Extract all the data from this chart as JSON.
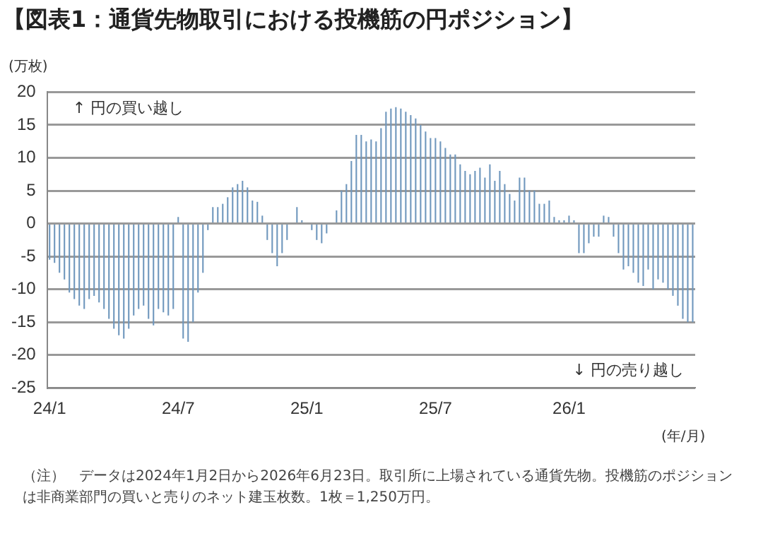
{
  "chart_data": {
    "type": "bar",
    "title": "【図表1：通貨先物取引における投機筋の円ポジション】",
    "ylabel": "(万枚)",
    "xlabel": "(年/月)",
    "categories": [
      "24/1",
      null,
      null,
      null,
      null,
      null,
      null,
      null,
      null,
      null,
      null,
      null,
      null,
      null,
      null,
      null,
      null,
      null,
      null,
      null,
      null,
      null,
      null,
      null,
      null,
      null,
      "24/7",
      null,
      null,
      null,
      null,
      null,
      null,
      null,
      null,
      null,
      null,
      null,
      null,
      null,
      null,
      null,
      null,
      null,
      null,
      null,
      null,
      null,
      null,
      null,
      null,
      null,
      "25/1",
      null,
      null,
      null,
      null,
      null,
      null,
      null,
      null,
      null,
      null,
      null,
      null,
      null,
      null,
      null,
      null,
      null,
      null,
      null,
      null,
      null,
      null,
      null,
      null,
      null,
      "25/7",
      null,
      null,
      null,
      null,
      null,
      null,
      null,
      null,
      null,
      null,
      null,
      null,
      null,
      null,
      null,
      null,
      null,
      null,
      null,
      null,
      null,
      null,
      null,
      null,
      null,
      null,
      "26/1",
      null,
      null,
      null,
      null,
      null,
      null,
      null,
      null,
      null,
      null,
      null,
      null,
      null,
      null,
      null,
      null,
      null,
      null,
      null,
      null,
      null,
      null,
      null,
      null,
      null
    ],
    "values": [
      -5.5,
      -6,
      -7.5,
      -8.5,
      -10.5,
      -11.5,
      -12.5,
      -13,
      -11.5,
      -11,
      -12,
      -13,
      -14.5,
      -16,
      -17,
      -17.5,
      -16,
      -14,
      -13,
      -12.5,
      -14.5,
      -15.5,
      -13,
      -13.5,
      -14,
      -13,
      1,
      -17.5,
      -18,
      -15,
      -10.5,
      -7.5,
      -1,
      2.5,
      2.5,
      3,
      4,
      5.5,
      6,
      6.5,
      5.5,
      3.5,
      3.3,
      1.2,
      -2.5,
      -4.5,
      -6.5,
      -4.5,
      -2.5,
      0,
      2.5,
      0.5,
      0,
      -1,
      -2.5,
      -3,
      -1.5,
      0,
      2,
      5,
      6,
      9.5,
      13.5,
      13.5,
      12.5,
      12.8,
      12.5,
      14.5,
      17,
      17.5,
      17.7,
      17.5,
      17,
      16.5,
      16,
      15,
      14,
      13,
      13,
      12.5,
      11.5,
      10.5,
      10.5,
      9,
      8,
      7.5,
      8,
      8.5,
      7,
      9,
      6.5,
      8,
      6,
      4.5,
      3.5,
      7,
      7,
      5,
      5,
      3,
      3,
      3.5,
      1,
      0.5,
      0.5,
      1.2,
      0.5,
      -4.5,
      -4.5,
      -3,
      -2,
      -2,
      1.2,
      1,
      -2,
      -4.5,
      -7,
      -6.5,
      -7.5,
      -9,
      -9.5,
      -7,
      -10,
      -8.5,
      -9,
      -10,
      -11,
      -12.5,
      -14.5,
      -15,
      -15
    ],
    "color": "#6f97bd",
    "ylim": [
      -25,
      20
    ],
    "yticks": [
      -25,
      -20,
      -15,
      -10,
      -5,
      0,
      5,
      10,
      15,
      20
    ],
    "grid": "y",
    "legend": false,
    "annotations": [
      "↑ 円の買い越し",
      "↓ 円の売り越し",
      "（注）　データは2024年1月2日から2026年6月23日。取引所に上場されている通貨先物。投機筋のポジションは非商業部門の買いと売りのネット建玉枚数。1枚＝1,250万円。"
    ]
  }
}
